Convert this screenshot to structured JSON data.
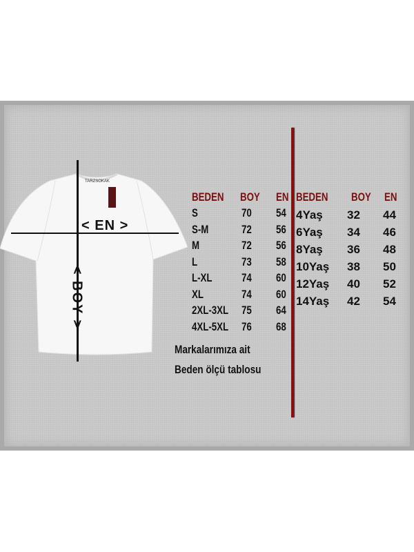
{
  "diagram": {
    "brand_label": "TARZSOKAK",
    "width_label": "< EN >",
    "length_label": "< BOY >"
  },
  "adult_table": {
    "headers": [
      "BEDEN",
      "BOY",
      "EN"
    ],
    "rows": [
      [
        "S",
        "70",
        "54"
      ],
      [
        "S-M",
        "72",
        "56"
      ],
      [
        "M",
        "72",
        "56"
      ],
      [
        "L",
        "73",
        "58"
      ],
      [
        "L-XL",
        "74",
        "60"
      ],
      [
        "XL",
        "74",
        "60"
      ],
      [
        "2XL-3XL",
        "75",
        "64"
      ],
      [
        "4XL-5XL",
        "76",
        "68"
      ]
    ]
  },
  "kids_table": {
    "headers": [
      "BEDEN",
      "BOY",
      "EN"
    ],
    "rows": [
      [
        "4Yaş",
        "32",
        "44"
      ],
      [
        "6Yaş",
        "34",
        "46"
      ],
      [
        "8Yaş",
        "36",
        "48"
      ],
      [
        "10Yaş",
        "38",
        "50"
      ],
      [
        "12Yaş",
        "40",
        "52"
      ],
      [
        "14Yaş",
        "42",
        "54"
      ]
    ]
  },
  "note": {
    "line1": "Markalarımıza ait",
    "line2": "Beden ölçü tablosu"
  },
  "colors": {
    "header": "#7a0f0f",
    "divider": "#8b0d0d",
    "board": "#c9c9c9"
  }
}
